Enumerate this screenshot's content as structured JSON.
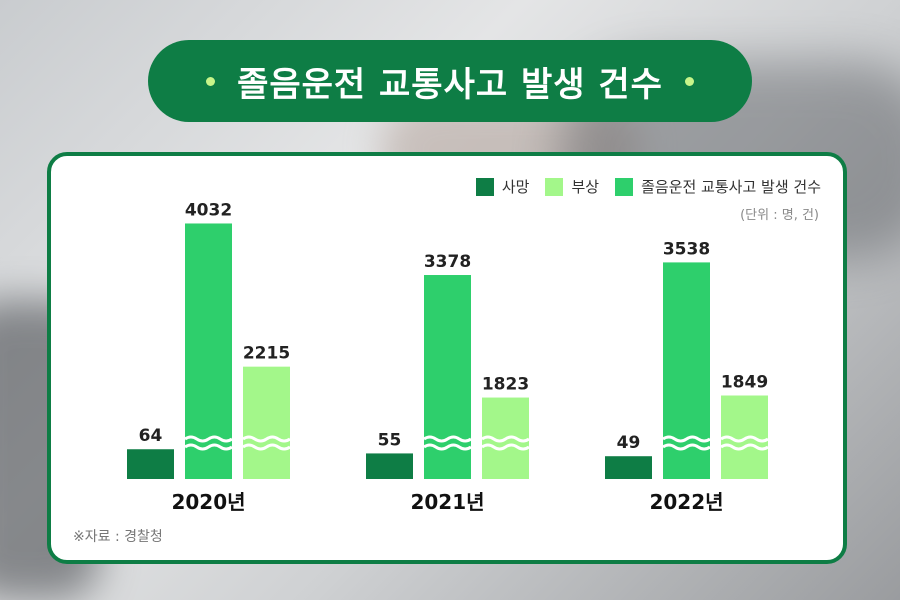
{
  "title": "졸음운전 교통사고 발생 건수",
  "legend": {
    "deaths": "사망",
    "injuries": "부상",
    "accidents": "졸음운전 교통사고 발생 건수"
  },
  "unit_note": "(단위 : 명, 건)",
  "source_note": "※자료 : 경찰청",
  "colors": {
    "deaths": "#0e7d45",
    "injuries": "#a3f78a",
    "accidents": "#2ecf6c",
    "title_bg": "#0e7d45"
  },
  "chart_data": {
    "type": "bar",
    "categories": [
      "2020년",
      "2021년",
      "2022년"
    ],
    "series": [
      {
        "name": "사망",
        "values": [
          64,
          55,
          49
        ]
      },
      {
        "name": "졸음운전 교통사고 발생 건수",
        "values": [
          4032,
          3378,
          3538
        ]
      },
      {
        "name": "부상",
        "values": [
          2215,
          1823,
          1849
        ]
      }
    ],
    "axis_break": true,
    "legend_position": "top-right",
    "grid": false
  }
}
